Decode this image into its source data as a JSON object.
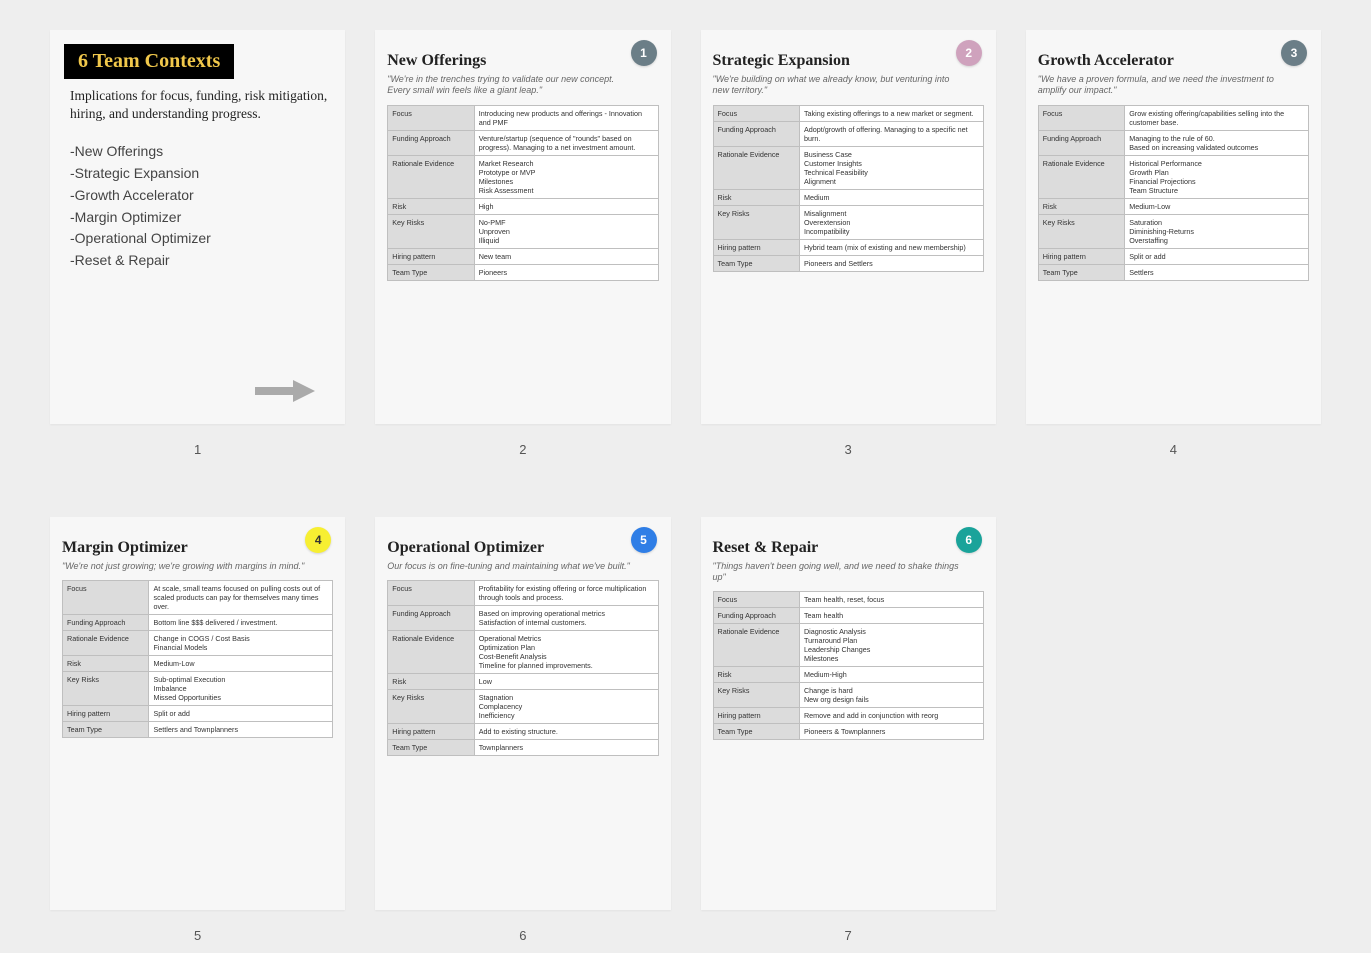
{
  "page_bg": "#eeeeee",
  "slide_bg": "#f7f7f7",
  "intro": {
    "title": "6 Team Contexts",
    "title_bg": "#000000",
    "title_fg": "#f1c84b",
    "subtitle": "Implications for focus, funding, risk mitigation, hiring, and understanding progress.",
    "items": [
      "-New Offerings",
      "-Strategic Expansion",
      "-Growth Accelerator",
      "-Margin Optimizer",
      "-Operational Optimizer",
      "-Reset & Repair"
    ],
    "arrow_color": "#aaaaaa",
    "page_number": "1"
  },
  "row_labels": {
    "focus": "Focus",
    "funding": "Funding Approach",
    "rationale": "Rationale Evidence",
    "risk": "Risk",
    "key_risks": "Key Risks",
    "hiring": "Hiring pattern",
    "team_type": "Team Type"
  },
  "contexts": [
    {
      "badge": "1",
      "badge_bg": "#6b7e87",
      "badge_fg": "#ffffff",
      "title": "New Offerings",
      "quote": "\"We're in the trenches trying to validate our new concept. Every small win feels like a giant leap.\"",
      "focus": "Introducing new products and offerings - Innovation and PMF",
      "funding": "Venture/startup (sequence of \"rounds\" based on progress). Managing to a net investment amount.",
      "rationale": "Market Research\nPrototype or MVP\nMilestones\nRisk Assessment",
      "risk": "High",
      "key_risks": "No-PMF\nUnproven\nIlliquid",
      "hiring": "New team",
      "team_type": "Pioneers",
      "page_number": "2"
    },
    {
      "badge": "2",
      "badge_bg": "#cfa2bd",
      "badge_fg": "#ffffff",
      "title": "Strategic Expansion",
      "quote": "\"We're building on what we already know, but venturing into new territory.\"",
      "focus": "Taking existing offerings to a new market or segment.",
      "funding": "Adopt/growth of offering. Managing to a specific net burn.",
      "rationale": "Business Case\nCustomer Insights\nTechnical Feasibility\nAlignment",
      "risk": "Medium",
      "key_risks": "Misalignment\nOverextension\nIncompatibility",
      "hiring": "Hybrid team (mix of existing and new membership)",
      "team_type": "Pioneers and Settlers",
      "page_number": "3"
    },
    {
      "badge": "3",
      "badge_bg": "#6b7e87",
      "badge_fg": "#ffffff",
      "title": "Growth Accelerator",
      "quote": "\"We have a proven formula, and we need the investment to amplify our impact.\"",
      "focus": "Grow existing offering/capabilities selling into the customer base.",
      "funding": "Managing to the rule of 60.\nBased on increasing validated outcomes",
      "rationale": "Historical Performance\nGrowth Plan\nFinancial Projections\nTeam Structure",
      "risk": "Medium-Low",
      "key_risks": "Saturation\nDiminishing-Returns\nOverstaffing",
      "hiring": "Split or add",
      "team_type": "Settlers",
      "page_number": "4"
    },
    {
      "badge": "4",
      "badge_bg": "#f7ef32",
      "badge_fg": "#333333",
      "title": "Margin Optimizer",
      "quote": "\"We're not just growing; we're growing with margins in mind.\"",
      "focus": "At scale, small teams focused on pulling costs out of scaled products can pay for themselves many times over.",
      "funding": "Bottom line $$$ delivered / investment.",
      "rationale": "Change in COGS / Cost Basis\nFinancial Models",
      "risk": "Medium-Low",
      "key_risks": "Sub-optimal Execution\nImbalance\nMissed Opportunities",
      "hiring": "Split or add",
      "team_type": "Settlers and Townplanners",
      "page_number": "5"
    },
    {
      "badge": "5",
      "badge_bg": "#2f7ee6",
      "badge_fg": "#ffffff",
      "title": "Operational Optimizer",
      "quote": "Our focus is on fine-tuning and maintaining what we've built.\"",
      "focus": "Profitability for existing offering or force multiplication through tools and process.",
      "funding": "Based on improving operational metrics\nSatisfaction of internal customers.",
      "rationale": "Operational Metrics\nOptimization Plan\nCost-Benefit Analysis\nTimeline for planned improvements.",
      "risk": "Low",
      "key_risks": "Stagnation\nComplacency\nInefficiency",
      "hiring": "Add to existing structure.",
      "team_type": "Townplanners",
      "page_number": "6"
    },
    {
      "badge": "6",
      "badge_bg": "#1aa39a",
      "badge_fg": "#ffffff",
      "title": "Reset & Repair",
      "quote": "\"Things haven't been going well, and we need to shake things up\"",
      "focus": "Team health, reset, focus",
      "funding": "Team health",
      "rationale": "Diagnostic Analysis\nTurnaround Plan\nLeadership Changes\nMilestones",
      "risk": "Medium-High",
      "key_risks": "Change is hard\nNew org design fails",
      "hiring": "Remove and add in conjunction with reorg",
      "team_type": "Pioneers & Townplanners",
      "page_number": "7"
    }
  ]
}
